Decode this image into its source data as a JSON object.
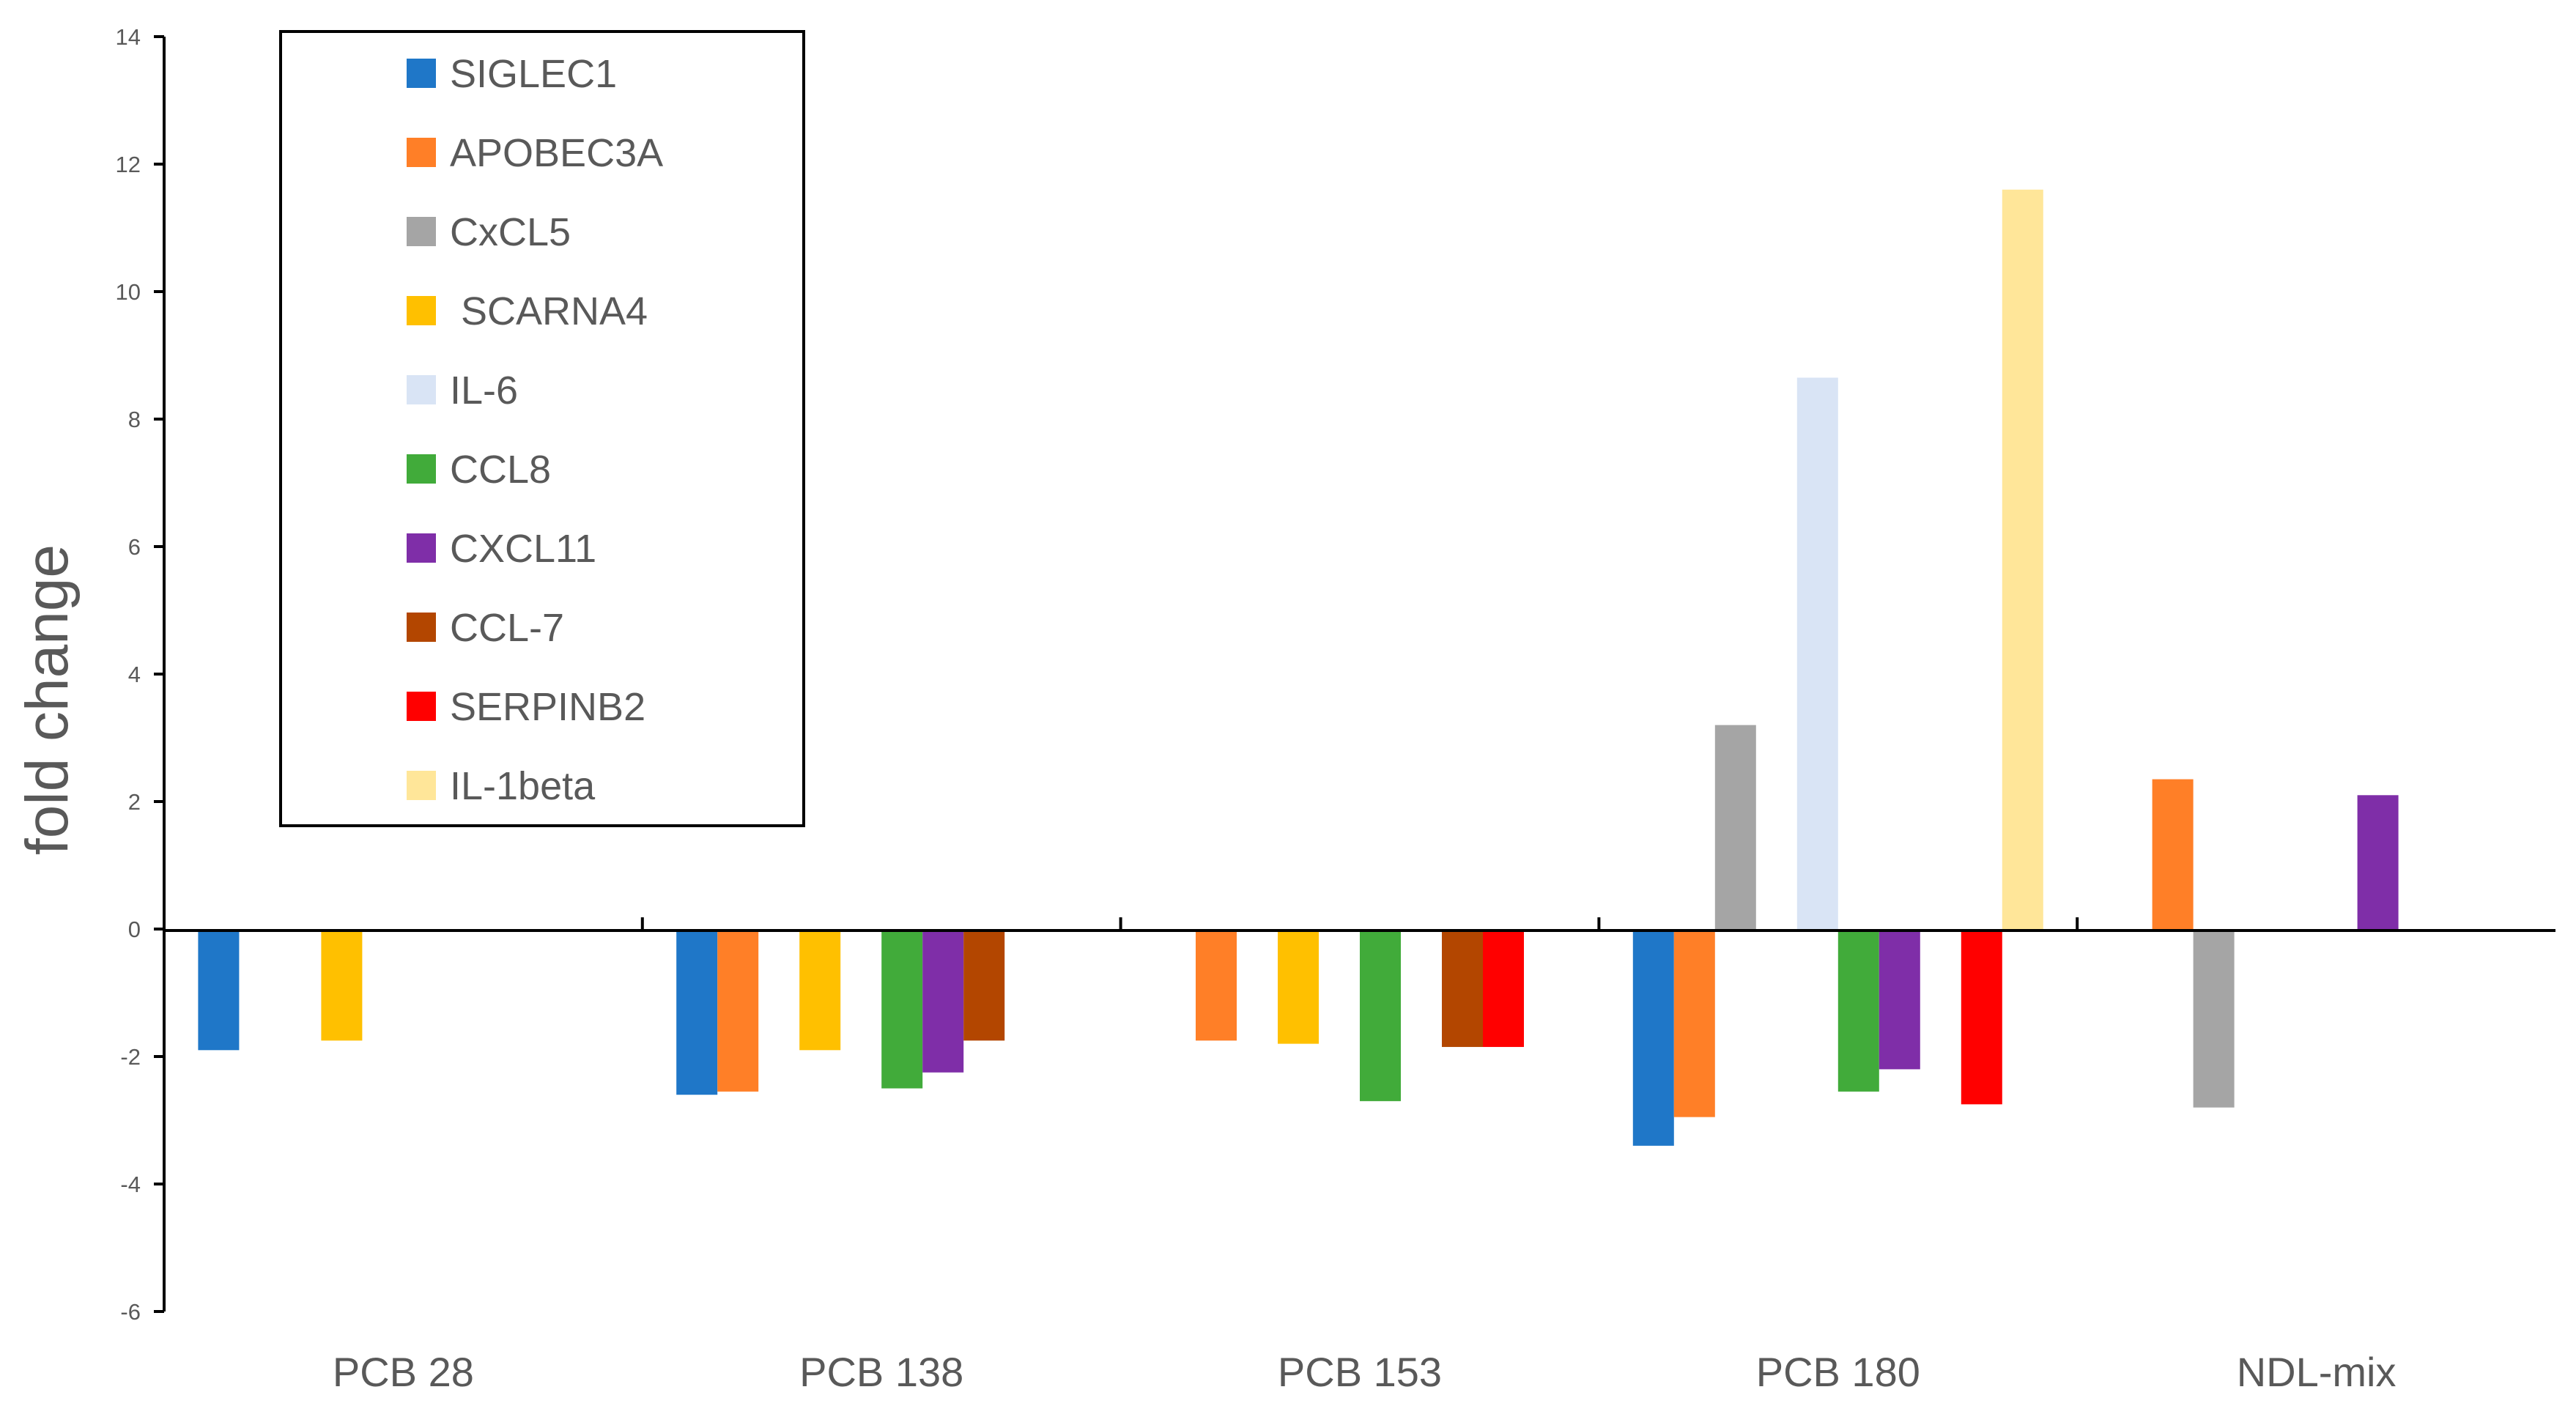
{
  "chart_data": {
    "type": "bar",
    "title": "",
    "xlabel": "",
    "ylabel": "fold change",
    "ylim": [
      -6,
      14
    ],
    "yticks": [
      "-6",
      "-4",
      "-2",
      "0",
      "2",
      "4",
      "6",
      "8",
      "10",
      "12",
      "14"
    ],
    "legend_position": "top-left",
    "categories": [
      "PCB 28",
      "PCB 138",
      "PCB 153",
      "PCB 180",
      "NDL-mix"
    ],
    "series": [
      {
        "name": "SIGLEC1",
        "color": "#1F77C8",
        "values": [
          -1.9,
          -2.6,
          null,
          -3.4,
          null
        ]
      },
      {
        "name": "APOBEC3A",
        "color": "#FF7F27",
        "values": [
          null,
          -2.55,
          -1.75,
          -2.95,
          2.35
        ]
      },
      {
        "name": "CxCL5",
        "color": "#A5A5A5",
        "values": [
          null,
          null,
          null,
          3.2,
          -2.8
        ]
      },
      {
        "name": " SCARNA4",
        "color": "#FFC000",
        "values": [
          -1.75,
          -1.9,
          -1.8,
          null,
          null
        ]
      },
      {
        "name": "IL-6",
        "color": "#D9E4F5",
        "values": [
          null,
          null,
          null,
          8.65,
          null
        ]
      },
      {
        "name": "CCL8",
        "color": "#41AB3A",
        "values": [
          null,
          -2.5,
          -2.7,
          -2.55,
          null
        ]
      },
      {
        "name": "CXCL11",
        "color": "#7F2EA8",
        "values": [
          null,
          -2.25,
          null,
          -2.2,
          2.1
        ]
      },
      {
        "name": "CCL-7",
        "color": "#B34600",
        "values": [
          null,
          -1.75,
          -1.85,
          null,
          null
        ]
      },
      {
        "name": "SERPINB2",
        "color": "#FF0000",
        "values": [
          null,
          null,
          -1.85,
          -2.75,
          null
        ]
      },
      {
        "name": "IL-1beta",
        "color": "#FFE699",
        "values": [
          null,
          null,
          null,
          11.6,
          null
        ]
      }
    ]
  }
}
